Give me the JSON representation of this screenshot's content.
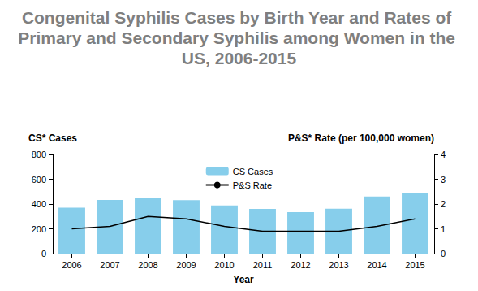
{
  "chart_data": {
    "type": "bar",
    "title": "Congenital Syphilis Cases by Birth Year and Rates of Primary and Secondary Syphilis among Women in the US, 2006-2015",
    "x_label": "Year",
    "y_label": "CS* Cases",
    "y2_label": "P&S* Rate (per 100,000 women)",
    "categories": [
      "2006",
      "2007",
      "2008",
      "2009",
      "2010",
      "2011",
      "2012",
      "2013",
      "2014",
      "2015"
    ],
    "series": [
      {
        "name": "CS Cases",
        "type": "bar",
        "color": "#87ceeb",
        "values": [
          370,
          432,
          446,
          431,
          388,
          360,
          334,
          362,
          461,
          487
        ]
      },
      {
        "name": "P&S Rate",
        "type": "line",
        "color": "#000000",
        "axis": "y2",
        "values": [
          1.0,
          1.1,
          1.5,
          1.4,
          1.1,
          0.9,
          0.9,
          0.9,
          1.1,
          1.4
        ]
      }
    ],
    "ylim": [
      0,
      800
    ],
    "yticks": [
      0,
      200,
      400,
      600,
      800
    ],
    "y2lim": [
      0,
      4
    ],
    "y2ticks": [
      0,
      1,
      2,
      3,
      4
    ],
    "grid": false,
    "legend": "top"
  }
}
